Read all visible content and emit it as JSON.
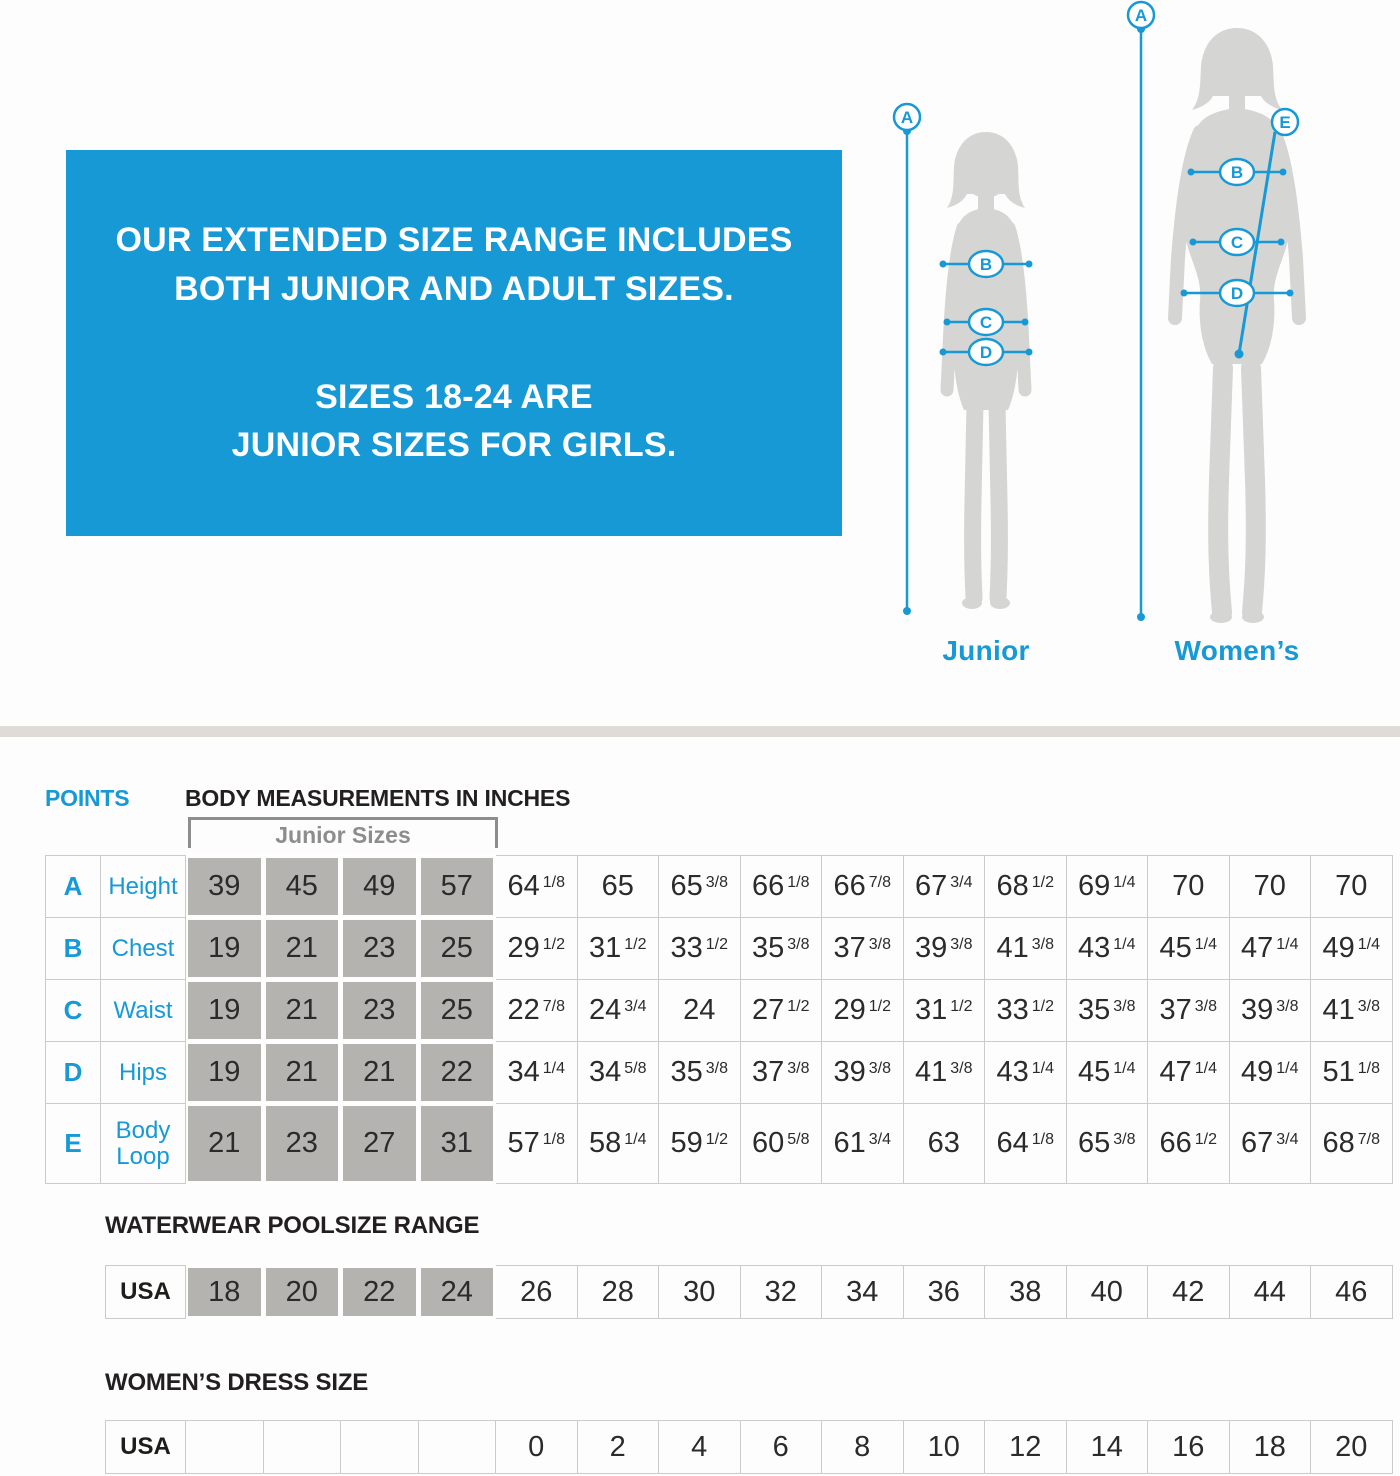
{
  "colors": {
    "accent_blue": "#1799d6",
    "junior_cell_gray": "#b5b3b0",
    "divider_gray": "#dfdcd7",
    "silhouette_gray": "#d5d5d3",
    "border_gray": "#cbcbcb",
    "text_dark": "#231f20",
    "bracket_gray": "#8d8d8d"
  },
  "banner": {
    "paragraph1": "OUR EXTENDED SIZE RANGE INCLUDES\nBOTH JUNIOR AND ADULT SIZES.",
    "paragraph2": "SIZES 18-24 ARE\nJUNIOR SIZES FOR GIRLS."
  },
  "figures": {
    "junior_label": "Junior",
    "womens_label": "Women’s",
    "junior_points": [
      "A",
      "B",
      "C",
      "D"
    ],
    "womens_points": [
      "A",
      "B",
      "C",
      "D",
      "E"
    ]
  },
  "measurements": {
    "points_header": "POINTS",
    "title": "BODY MEASUREMENTS IN INCHES",
    "junior_bracket_label": "Junior Sizes",
    "rows": [
      {
        "point": "A",
        "label": "Height",
        "junior": [
          "39",
          "45",
          "49",
          "57"
        ],
        "adult": [
          "64 1/8",
          "65",
          "65 3/8",
          "66 1/8",
          "66 7/8",
          "67 3/4",
          "68 1/2",
          "69 1/4",
          "70",
          "70",
          "70"
        ]
      },
      {
        "point": "B",
        "label": "Chest",
        "junior": [
          "19",
          "21",
          "23",
          "25"
        ],
        "adult": [
          "29 1/2",
          "31 1/2",
          "33 1/2",
          "35 3/8",
          "37 3/8",
          "39 3/8",
          "41 3/8",
          "43 1/4",
          "45 1/4",
          "47 1/4",
          "49 1/4"
        ]
      },
      {
        "point": "C",
        "label": "Waist",
        "junior": [
          "19",
          "21",
          "23",
          "25"
        ],
        "adult": [
          "22 7/8",
          "24 3/4",
          "24",
          "27 1/2",
          "29 1/2",
          "31 1/2",
          "33 1/2",
          "35 3/8",
          "37 3/8",
          "39 3/8",
          "41 3/8"
        ]
      },
      {
        "point": "D",
        "label": "Hips",
        "junior": [
          "19",
          "21",
          "21",
          "22"
        ],
        "adult": [
          "34 1/4",
          "34 5/8",
          "35 3/8",
          "37 3/8",
          "39 3/8",
          "41 3/8",
          "43 1/4",
          "45 1/4",
          "47 1/4",
          "49 1/4",
          "51 1/8"
        ]
      },
      {
        "point": "E",
        "label": "Body Loop",
        "junior": [
          "21",
          "23",
          "27",
          "31"
        ],
        "adult": [
          "57 1/8",
          "58 1/4",
          "59 1/2",
          "60 5/8",
          "61 3/4",
          "63",
          "64 1/8",
          "65 3/8",
          "66 1/2",
          "67 3/4",
          "68 7/8"
        ]
      }
    ]
  },
  "poolsize": {
    "title": "WATERWEAR POOLSIZE RANGE",
    "row_label": "USA",
    "junior": [
      "18",
      "20",
      "22",
      "24"
    ],
    "adult": [
      "26",
      "28",
      "30",
      "32",
      "34",
      "36",
      "38",
      "40",
      "42",
      "44",
      "46"
    ]
  },
  "dress": {
    "title": "WOMEN’S DRESS SIZE",
    "row_label": "USA",
    "junior": [
      "",
      "",
      "",
      ""
    ],
    "adult": [
      "0",
      "2",
      "4",
      "6",
      "8",
      "10",
      "12",
      "14",
      "16",
      "18",
      "20"
    ]
  }
}
